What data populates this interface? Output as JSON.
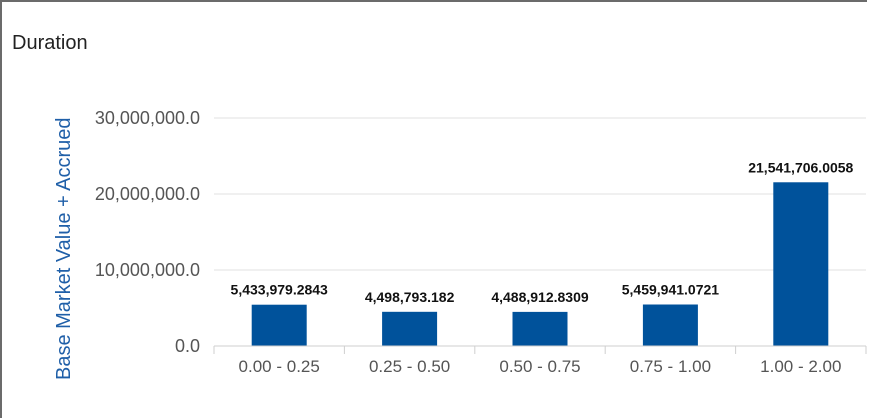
{
  "chart_data": {
    "type": "bar",
    "title": "Duration",
    "xlabel": "",
    "ylabel": "Base Market Value + Accrued",
    "categories": [
      "0.00 - 0.25",
      "0.25 - 0.50",
      "0.50 - 0.75",
      "0.75 - 1.00",
      "1.00 - 2.00"
    ],
    "values": [
      5433979.2843,
      4498793.182,
      4488912.8309,
      5459941.0721,
      21541706.0058
    ],
    "value_labels": [
      "5,433,979.2843",
      "4,498,793.182",
      "4,488,912.8309",
      "5,459,941.0721",
      "21,541,706.0058"
    ],
    "ylim": [
      0,
      30000000
    ],
    "yticks": [
      0,
      10000000,
      20000000,
      30000000
    ],
    "ytick_labels": [
      "0.0",
      "10,000,000.0",
      "20,000,000.0",
      "30,000,000.0"
    ],
    "grid": true,
    "bar_color": "#00529b",
    "ylabel_color": "#1f5fa8"
  }
}
